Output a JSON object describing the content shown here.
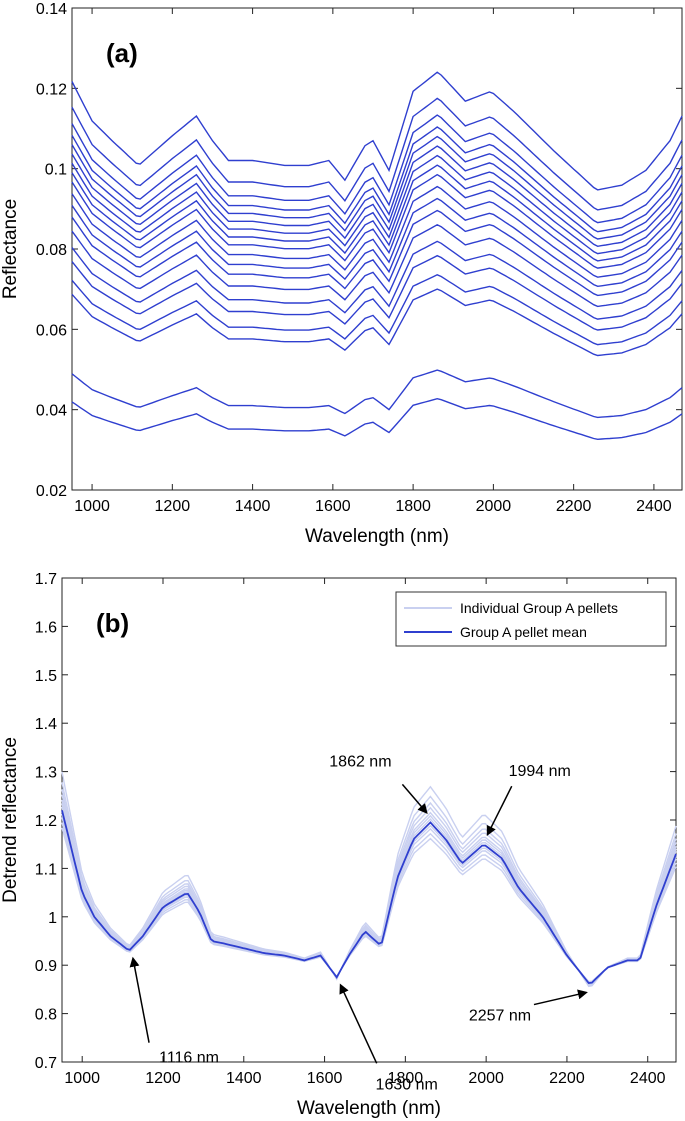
{
  "colors": {
    "mean": "#2f3fcf",
    "individual": "#c9d0f0",
    "axis": "#222222"
  },
  "chart_data": [
    {
      "type": "line",
      "panel_label": "(a)",
      "xlabel": "Wavelength (nm)",
      "ylabel": "Reflectance",
      "xlim": [
        950,
        2470
      ],
      "ylim": [
        0.02,
        0.14
      ],
      "xticks": [
        1000,
        1200,
        1400,
        1600,
        1800,
        2000,
        2200,
        2400
      ],
      "yticks": [
        0.02,
        0.04,
        0.06,
        0.08,
        0.1,
        0.12,
        0.14
      ],
      "ytick_labels": [
        "0.02",
        "0.04",
        "0.06",
        "0.08",
        "0.1",
        "0.12",
        "0.14"
      ],
      "x": [
        950,
        1000,
        1050,
        1116,
        1200,
        1260,
        1300,
        1340,
        1400,
        1480,
        1540,
        1590,
        1630,
        1680,
        1700,
        1740,
        1800,
        1862,
        1930,
        1994,
        2050,
        2150,
        2257,
        2320,
        2380,
        2440,
        2470
      ],
      "shape": [
        0.014,
        0.006,
        0.002,
        -0.003,
        0.003,
        0.007,
        0.002,
        -0.002,
        -0.002,
        -0.003,
        -0.003,
        -0.002,
        -0.006,
        0.001,
        0.002,
        -0.004,
        0.012,
        0.016,
        0.01,
        0.012,
        0.008,
        0.0,
        -0.008,
        -0.007,
        -0.004,
        0.002,
        0.007
      ],
      "series_offsets": [
        0.1045,
        0.099,
        0.0955,
        0.093,
        0.091,
        0.089,
        0.087,
        0.085,
        0.083,
        0.0805,
        0.078,
        0.0755,
        0.0725,
        0.069,
        0.066,
        0.062,
        0.059,
        0.042,
        0.036
      ]
    },
    {
      "type": "line",
      "panel_label": "(b)",
      "xlabel": "Wavelength (nm)",
      "ylabel": "Detrend reflectance",
      "xlim": [
        950,
        2470
      ],
      "ylim": [
        0.7,
        1.7
      ],
      "xticks": [
        1000,
        1200,
        1400,
        1600,
        1800,
        2000,
        2200,
        2400
      ],
      "yticks": [
        0.7,
        0.8,
        0.9,
        1.0,
        1.1,
        1.2,
        1.3,
        1.4,
        1.5,
        1.6,
        1.7
      ],
      "ytick_labels": [
        "0.7",
        "0.8",
        "0.9",
        "1",
        "1.1",
        "1.2",
        "1.3",
        "1.4",
        "1.5",
        "1.6",
        "1.7"
      ],
      "legend": {
        "position": "top-right",
        "entries": [
          "Individual Group A pellets",
          "Group A pellet mean"
        ]
      },
      "x": [
        950,
        1000,
        1030,
        1070,
        1116,
        1150,
        1200,
        1260,
        1290,
        1320,
        1350,
        1400,
        1450,
        1500,
        1550,
        1590,
        1630,
        1660,
        1700,
        1720,
        1740,
        1780,
        1820,
        1862,
        1900,
        1940,
        1994,
        2040,
        2080,
        2140,
        2200,
        2257,
        2300,
        2350,
        2380,
        2420,
        2470
      ],
      "mean": [
        1.22,
        1.05,
        1.0,
        0.96,
        0.93,
        0.96,
        1.02,
        1.05,
        1.01,
        0.95,
        0.945,
        0.935,
        0.925,
        0.92,
        0.91,
        0.92,
        0.875,
        0.92,
        0.97,
        0.955,
        0.94,
        1.08,
        1.16,
        1.195,
        1.16,
        1.11,
        1.15,
        1.12,
        1.06,
        1.0,
        0.92,
        0.86,
        0.895,
        0.91,
        0.91,
        1.02,
        1.13
      ],
      "individual_scales": [
        -1.0,
        -0.7,
        -0.4,
        -0.2,
        0.2,
        0.4,
        0.6,
        0.9,
        1.2,
        1.6,
        2.2
      ],
      "annotations": [
        {
          "label": "1116 nm",
          "x": 1116
        },
        {
          "label": "1630 nm",
          "x": 1630
        },
        {
          "label": "1862 nm",
          "x": 1862
        },
        {
          "label": "1994 nm",
          "x": 1994
        },
        {
          "label": "2257 nm",
          "x": 2257
        }
      ]
    }
  ]
}
